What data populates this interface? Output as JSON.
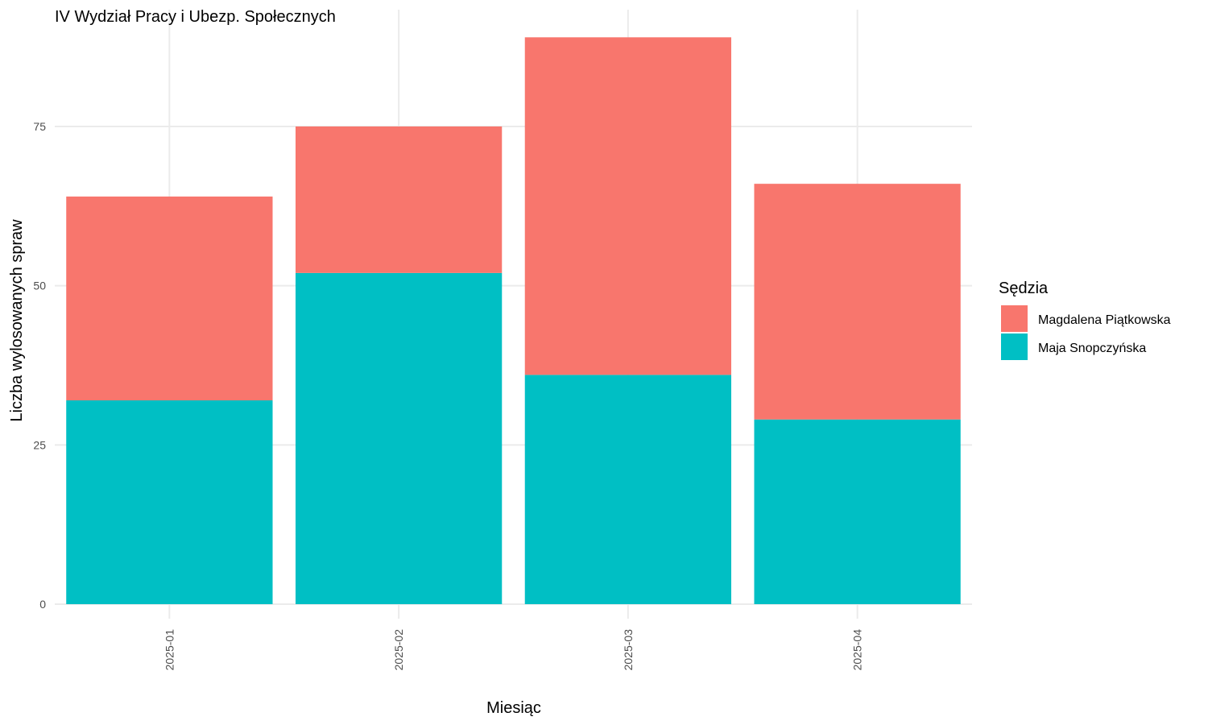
{
  "chart_data": {
    "type": "bar",
    "stacked": true,
    "title": "IV Wydział Pracy i Ubezp. Społecznych",
    "xlabel": "Miesiąc",
    "ylabel": "Liczba wylosowanych spraw",
    "categories": [
      "2025-01",
      "2025-02",
      "2025-03",
      "2025-04"
    ],
    "series": [
      {
        "name": "Maja Snopczyńska",
        "color": "#00BFC4",
        "values": [
          32,
          52,
          36,
          29
        ]
      },
      {
        "name": "Magdalena Piątkowska",
        "color": "#F8766D",
        "values": [
          32,
          23,
          53,
          37
        ]
      }
    ],
    "stack_order": [
      "Maja Snopczyńska",
      "Magdalena Piątkowska"
    ],
    "ylim": [
      0,
      89
    ],
    "yticks": [
      0,
      25,
      50,
      75
    ],
    "grid": true,
    "legend": {
      "title": "Sędzia",
      "position": "right",
      "entries": [
        "Magdalena Piątkowska",
        "Maja Snopczyńska"
      ]
    }
  }
}
